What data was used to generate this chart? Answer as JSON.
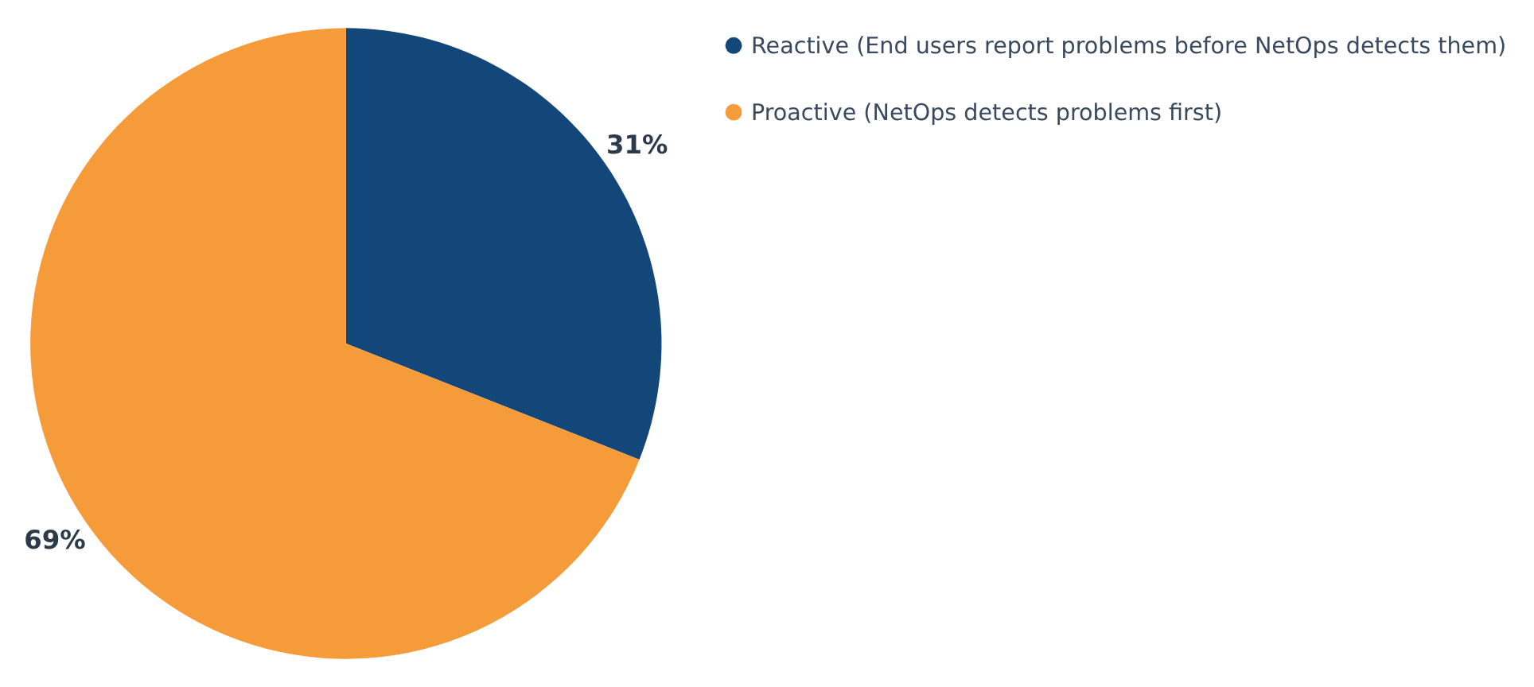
{
  "chart_data": {
    "type": "pie",
    "categories": [
      "Reactive (End users report problems before NetOps detects them)",
      "Proactive (NetOps detects problems first)"
    ],
    "values": [
      31,
      69
    ],
    "colors": [
      "#134679",
      "#f59b3a"
    ],
    "value_labels": [
      "31%",
      "69%"
    ],
    "legend": "right"
  }
}
